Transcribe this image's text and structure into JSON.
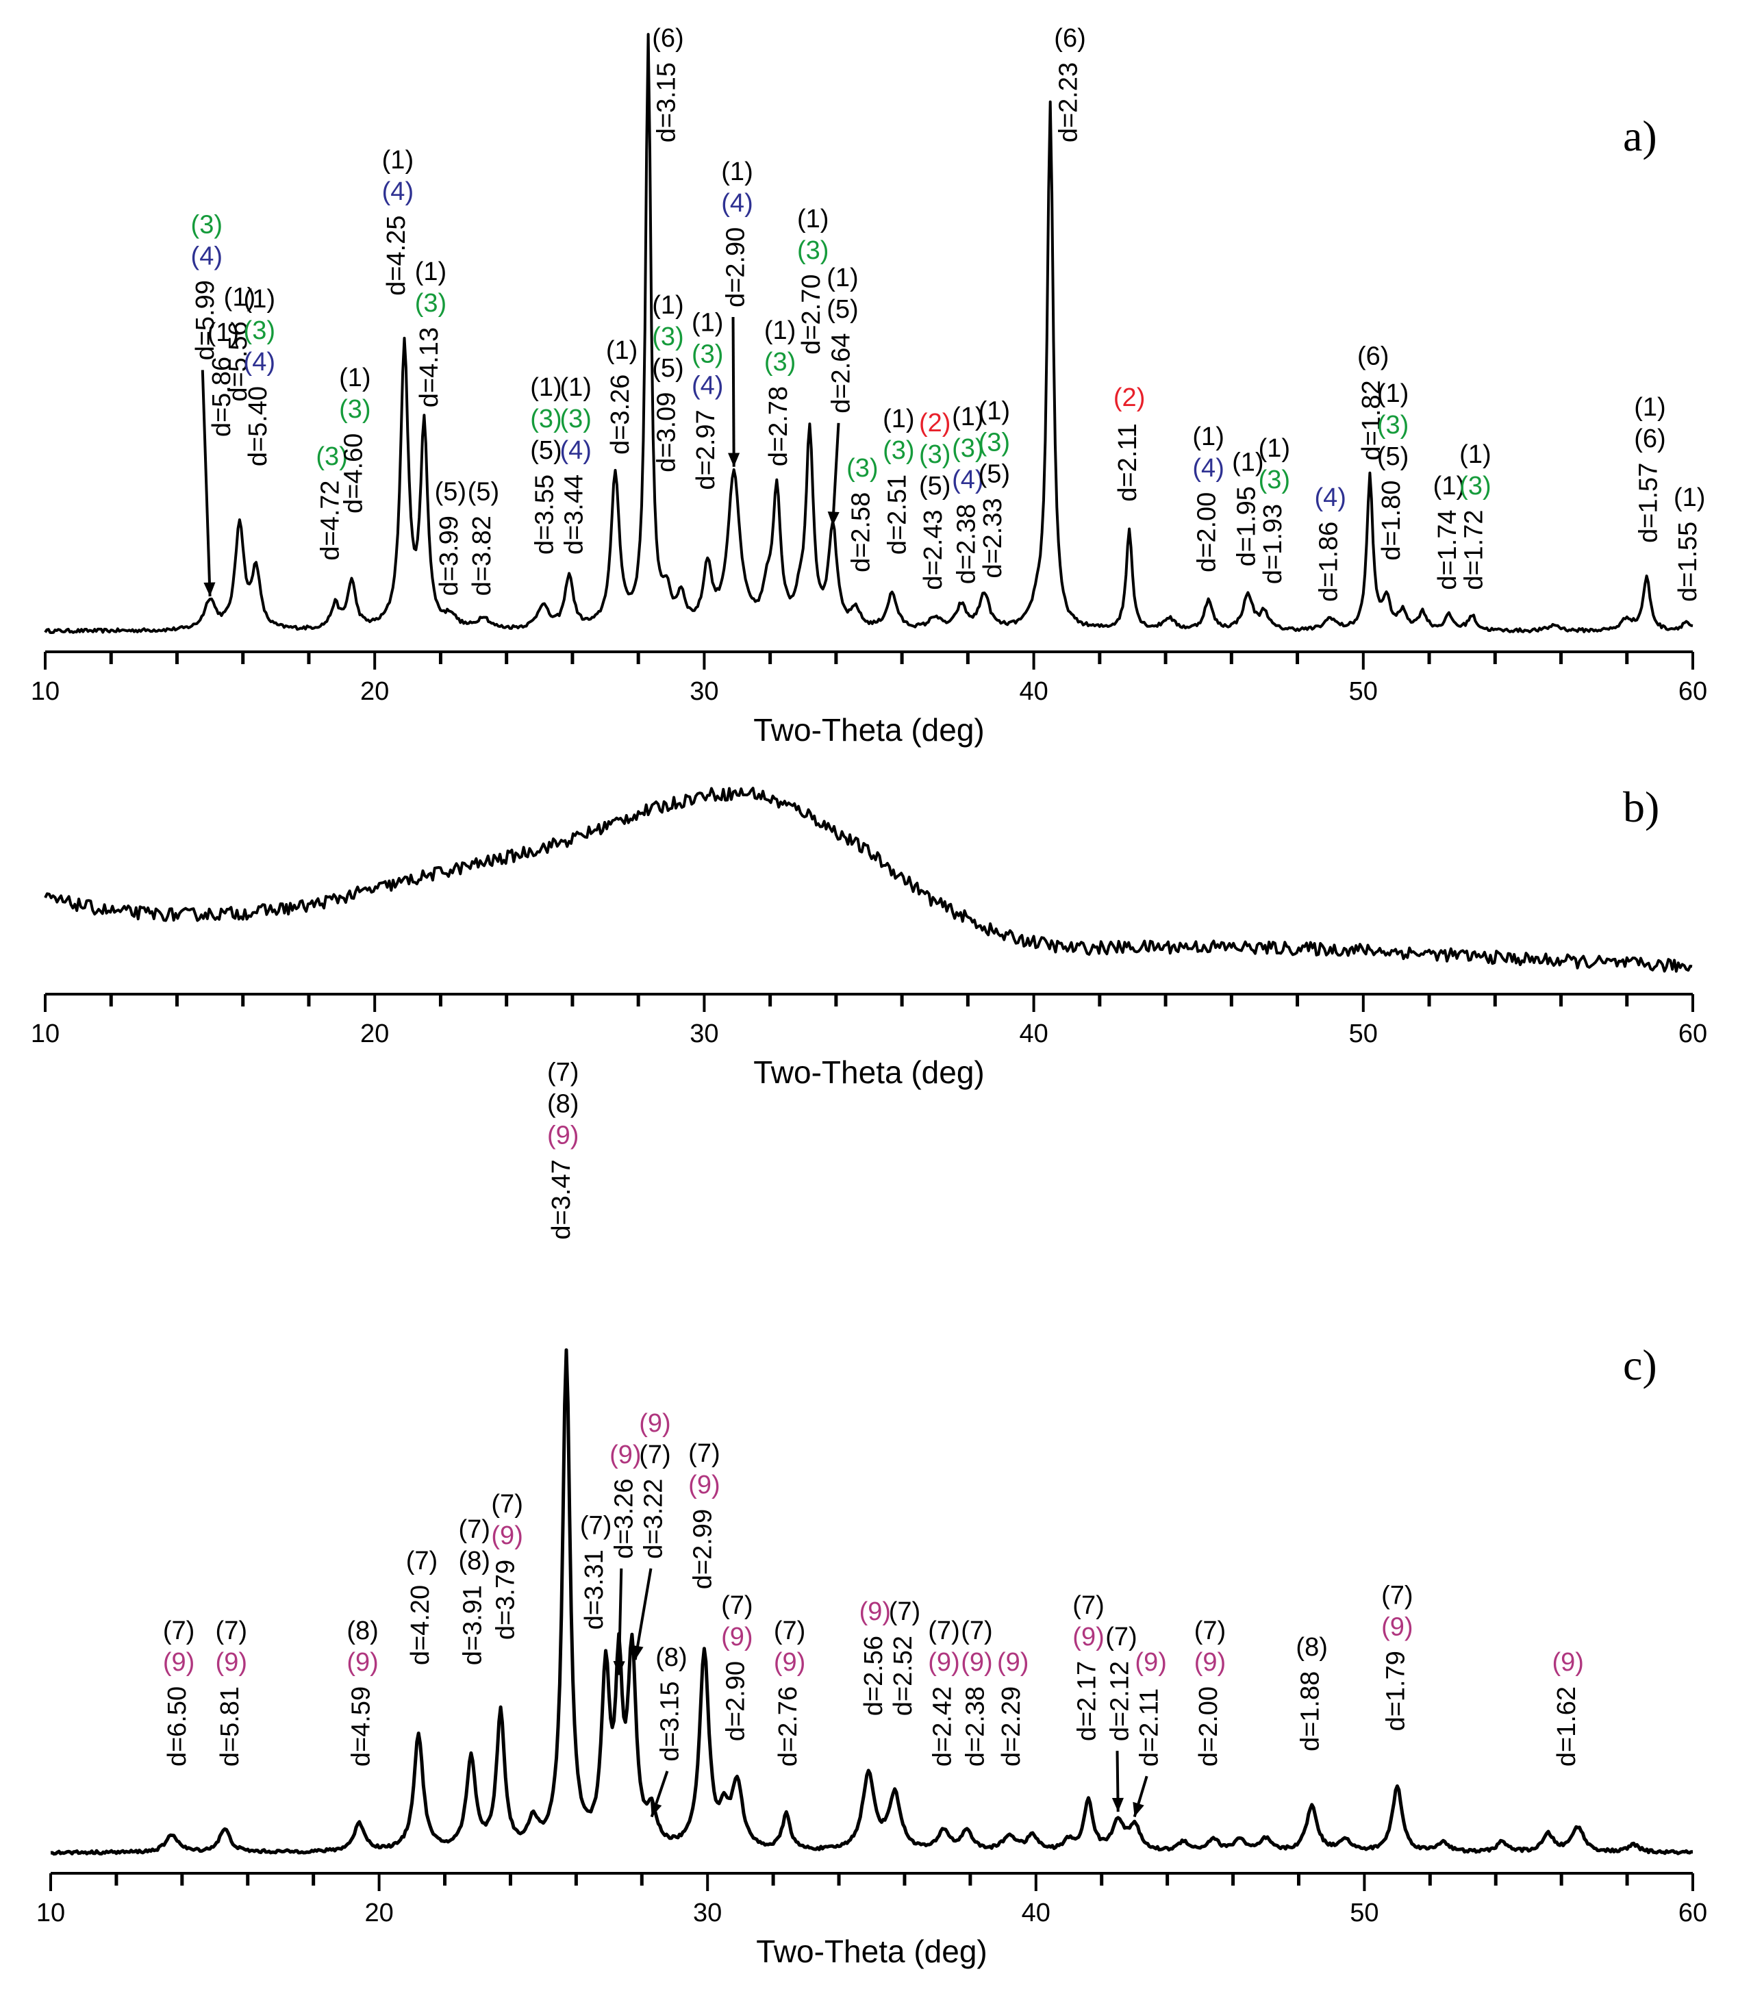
{
  "colors": {
    "black": "#000000",
    "phase1": "#000000",
    "phase2": "#e8202a",
    "phase3": "#159b3b",
    "phase4": "#2e3192",
    "phase5": "#000000",
    "phase6": "#000000",
    "phase7": "#000000",
    "phase8": "#000000",
    "phase9": "#b0367f"
  },
  "chart_data": [
    {
      "panel": "a)",
      "type": "line",
      "xlabel": "Two-Theta (deg)",
      "xlim": [
        10,
        60
      ],
      "xticks": [
        10,
        20,
        30,
        40,
        50,
        60
      ],
      "ylim": [
        0,
        1
      ],
      "peaks": [
        {
          "x": 15.0,
          "h": 0.05,
          "w": 0.2
        },
        {
          "x": 15.9,
          "h": 0.18,
          "w": 0.16
        },
        {
          "x": 16.4,
          "h": 0.1,
          "w": 0.15
        },
        {
          "x": 18.8,
          "h": 0.04,
          "w": 0.15
        },
        {
          "x": 19.3,
          "h": 0.08,
          "w": 0.15
        },
        {
          "x": 20.9,
          "h": 0.48,
          "w": 0.14
        },
        {
          "x": 21.5,
          "h": 0.34,
          "w": 0.13
        },
        {
          "x": 22.3,
          "h": 0.02,
          "w": 0.2
        },
        {
          "x": 23.3,
          "h": 0.02,
          "w": 0.2
        },
        {
          "x": 25.1,
          "h": 0.04,
          "w": 0.2
        },
        {
          "x": 25.9,
          "h": 0.09,
          "w": 0.15
        },
        {
          "x": 27.3,
          "h": 0.26,
          "w": 0.15
        },
        {
          "x": 28.3,
          "h": 1.0,
          "w": 0.1
        },
        {
          "x": 28.85,
          "h": 0.05,
          "w": 0.15
        },
        {
          "x": 29.3,
          "h": 0.05,
          "w": 0.15
        },
        {
          "x": 30.1,
          "h": 0.1,
          "w": 0.15
        },
        {
          "x": 30.9,
          "h": 0.26,
          "w": 0.22
        },
        {
          "x": 31.9,
          "h": 0.05,
          "w": 0.15
        },
        {
          "x": 32.2,
          "h": 0.23,
          "w": 0.14
        },
        {
          "x": 32.9,
          "h": 0.04,
          "w": 0.15
        },
        {
          "x": 33.2,
          "h": 0.33,
          "w": 0.13
        },
        {
          "x": 33.9,
          "h": 0.17,
          "w": 0.15
        },
        {
          "x": 34.6,
          "h": 0.03,
          "w": 0.15
        },
        {
          "x": 35.7,
          "h": 0.06,
          "w": 0.18
        },
        {
          "x": 37.0,
          "h": 0.02,
          "w": 0.2
        },
        {
          "x": 37.8,
          "h": 0.04,
          "w": 0.18
        },
        {
          "x": 38.5,
          "h": 0.06,
          "w": 0.18
        },
        {
          "x": 40.1,
          "h": 0.03,
          "w": 0.2
        },
        {
          "x": 40.5,
          "h": 0.89,
          "w": 0.11
        },
        {
          "x": 42.9,
          "h": 0.17,
          "w": 0.11
        },
        {
          "x": 44.1,
          "h": 0.02,
          "w": 0.2
        },
        {
          "x": 45.3,
          "h": 0.05,
          "w": 0.15
        },
        {
          "x": 46.5,
          "h": 0.06,
          "w": 0.18
        },
        {
          "x": 47.0,
          "h": 0.03,
          "w": 0.15
        },
        {
          "x": 49.0,
          "h": 0.02,
          "w": 0.2
        },
        {
          "x": 50.2,
          "h": 0.26,
          "w": 0.11
        },
        {
          "x": 50.7,
          "h": 0.05,
          "w": 0.15
        },
        {
          "x": 51.2,
          "h": 0.03,
          "w": 0.15
        },
        {
          "x": 51.8,
          "h": 0.03,
          "w": 0.15
        },
        {
          "x": 52.6,
          "h": 0.025,
          "w": 0.15
        },
        {
          "x": 53.3,
          "h": 0.025,
          "w": 0.15
        },
        {
          "x": 55.8,
          "h": 0.01,
          "w": 0.2
        },
        {
          "x": 58.0,
          "h": 0.02,
          "w": 0.2
        },
        {
          "x": 58.6,
          "h": 0.09,
          "w": 0.13
        },
        {
          "x": 59.8,
          "h": 0.015,
          "w": 0.15
        }
      ],
      "annotations": [
        {
          "d": "d=5.99",
          "x": 14.9,
          "h": 0.46,
          "phases": [
            "(3)",
            "(4)"
          ],
          "arrow": [
            15.0,
            0.05
          ]
        },
        {
          "d": "d=5.86",
          "x": 15.4,
          "h": 0.33,
          "phases": [
            "(1)"
          ]
        },
        {
          "d": "d=5.56",
          "x": 15.9,
          "h": 0.39,
          "phases": [
            "(1)"
          ]
        },
        {
          "d": "d=5.40",
          "x": 16.5,
          "h": 0.28,
          "phases": [
            "(1)",
            "(3)",
            "(4)"
          ]
        },
        {
          "d": "d=4.72",
          "x": 18.7,
          "h": 0.12,
          "phases": [
            "(3)"
          ]
        },
        {
          "d": "d=4.60",
          "x": 19.4,
          "h": 0.2,
          "phases": [
            "(1)",
            "(3)"
          ]
        },
        {
          "d": "d=4.25",
          "x": 20.7,
          "h": 0.57,
          "phases": [
            "(1)",
            "(4)"
          ]
        },
        {
          "d": "d=4.13",
          "x": 21.7,
          "h": 0.38,
          "phases": [
            "(1)",
            "(3)"
          ]
        },
        {
          "d": "d=3.99",
          "x": 22.3,
          "h": 0.06,
          "phases": [
            "(5)"
          ]
        },
        {
          "d": "d=3.82",
          "x": 23.3,
          "h": 0.06,
          "phases": [
            "(5)"
          ]
        },
        {
          "d": "d=3.55",
          "x": 25.2,
          "h": 0.13,
          "phases": [
            "(1)",
            "(3)",
            "(5)"
          ]
        },
        {
          "d": "d=3.44",
          "x": 26.1,
          "h": 0.13,
          "phases": [
            "(1)",
            "(3)",
            "(4)"
          ]
        },
        {
          "d": "d=3.26",
          "x": 27.5,
          "h": 0.3,
          "phases": [
            "(1)"
          ]
        },
        {
          "d": "d=3.15",
          "x": 28.9,
          "h": 0.83,
          "phases": [
            "(6)"
          ]
        },
        {
          "d": "d=3.09",
          "x": 28.9,
          "h": 0.27,
          "phases": [
            "(1)",
            "(3)",
            "(5)"
          ]
        },
        {
          "d": "d=2.97",
          "x": 30.1,
          "h": 0.24,
          "phases": [
            "(1)",
            "(3)",
            "(4)"
          ]
        },
        {
          "d": "d=2.90",
          "x": 31.0,
          "h": 0.55,
          "phases": [
            "(1)",
            "(4)"
          ],
          "arrow": [
            30.9,
            0.27
          ]
        },
        {
          "d": "d=2.78",
          "x": 32.3,
          "h": 0.28,
          "phases": [
            "(1)",
            "(3)"
          ]
        },
        {
          "d": "d=2.70",
          "x": 33.3,
          "h": 0.47,
          "phases": [
            "(1)",
            "(3)"
          ]
        },
        {
          "d": "d=2.64",
          "x": 34.2,
          "h": 0.37,
          "phases": [
            "(1)",
            "(5)"
          ],
          "arrow": [
            33.9,
            0.17
          ]
        },
        {
          "d": "d=2.58",
          "x": 34.8,
          "h": 0.1,
          "phases": [
            "(3)"
          ]
        },
        {
          "d": "d=2.51",
          "x": 35.9,
          "h": 0.13,
          "phases": [
            "(1)",
            "(3)"
          ]
        },
        {
          "d": "d=2.43",
          "x": 37.0,
          "h": 0.07,
          "phases": [
            "(2)",
            "(3)",
            "(5)"
          ]
        },
        {
          "d": "d=2.38",
          "x": 38.0,
          "h": 0.08,
          "phases": [
            "(1)",
            "(3)",
            "(4)"
          ]
        },
        {
          "d": "d=2.33",
          "x": 38.8,
          "h": 0.09,
          "phases": [
            "(1)",
            "(3)",
            "(5)"
          ]
        },
        {
          "d": "d=2.23",
          "x": 41.1,
          "h": 0.83,
          "phases": [
            "(6)"
          ]
        },
        {
          "d": "d=2.11",
          "x": 42.9,
          "h": 0.22,
          "phases": [
            "(2)"
          ]
        },
        {
          "d": "d=2.00",
          "x": 45.3,
          "h": 0.1,
          "phases": [
            "(1)",
            "(4)"
          ]
        },
        {
          "d": "d=1.95",
          "x": 46.5,
          "h": 0.11,
          "phases": [
            "(1)"
          ]
        },
        {
          "d": "d=1.93",
          "x": 47.3,
          "h": 0.08,
          "phases": [
            "(1)",
            "(3)"
          ]
        },
        {
          "d": "d=1.86",
          "x": 49.0,
          "h": 0.05,
          "phases": [
            "(4)"
          ]
        },
        {
          "d": "d=1.82",
          "x": 50.3,
          "h": 0.29,
          "phases": [
            "(6)"
          ]
        },
        {
          "d": "d=1.80",
          "x": 50.9,
          "h": 0.12,
          "phases": [
            "(1)",
            "(3)",
            "(5)"
          ]
        },
        {
          "d": "d=1.74",
          "x": 52.6,
          "h": 0.07,
          "phases": [
            "(1)"
          ]
        },
        {
          "d": "d=1.72",
          "x": 53.4,
          "h": 0.07,
          "phases": [
            "(1)",
            "(3)"
          ]
        },
        {
          "d": "d=1.57",
          "x": 58.7,
          "h": 0.15,
          "phases": [
            "(1)",
            "(6)"
          ]
        },
        {
          "d": "d=1.55",
          "x": 59.9,
          "h": 0.05,
          "phases": [
            "(1)"
          ]
        }
      ]
    },
    {
      "panel": "b)",
      "type": "line",
      "xlabel": "Two-Theta (deg)",
      "xlim": [
        10,
        60
      ],
      "xticks": [
        10,
        20,
        30,
        40,
        50,
        60
      ],
      "ylim": [
        0,
        1
      ],
      "profile": [
        [
          10,
          0.4
        ],
        [
          12,
          0.33
        ],
        [
          14,
          0.31
        ],
        [
          16,
          0.32
        ],
        [
          18,
          0.36
        ],
        [
          20,
          0.45
        ],
        [
          22,
          0.54
        ],
        [
          24,
          0.62
        ],
        [
          26,
          0.72
        ],
        [
          28,
          0.86
        ],
        [
          30,
          0.96
        ],
        [
          31.5,
          0.97
        ],
        [
          33,
          0.87
        ],
        [
          35,
          0.65
        ],
        [
          37,
          0.38
        ],
        [
          39,
          0.2
        ],
        [
          41,
          0.13
        ],
        [
          45,
          0.14
        ],
        [
          50,
          0.12
        ],
        [
          55,
          0.07
        ],
        [
          60,
          0.03
        ]
      ]
    },
    {
      "panel": "c)",
      "type": "line",
      "xlabel": "Two-Theta (deg)",
      "xlim": [
        10,
        60
      ],
      "xticks": [
        10,
        20,
        30,
        40,
        50,
        60
      ],
      "ylim": [
        0,
        1
      ],
      "peaks": [
        {
          "x": 13.7,
          "h": 0.035,
          "w": 0.22
        },
        {
          "x": 15.3,
          "h": 0.045,
          "w": 0.2
        },
        {
          "x": 19.4,
          "h": 0.055,
          "w": 0.2
        },
        {
          "x": 21.2,
          "h": 0.23,
          "w": 0.17
        },
        {
          "x": 22.8,
          "h": 0.18,
          "w": 0.17
        },
        {
          "x": 23.7,
          "h": 0.27,
          "w": 0.15
        },
        {
          "x": 24.7,
          "h": 0.05,
          "w": 0.18
        },
        {
          "x": 25.7,
          "h": 0.98,
          "w": 0.14
        },
        {
          "x": 26.9,
          "h": 0.34,
          "w": 0.15
        },
        {
          "x": 27.3,
          "h": 0.33,
          "w": 0.12
        },
        {
          "x": 27.7,
          "h": 0.38,
          "w": 0.15
        },
        {
          "x": 28.3,
          "h": 0.065,
          "w": 0.18
        },
        {
          "x": 29.9,
          "h": 0.39,
          "w": 0.17
        },
        {
          "x": 30.5,
          "h": 0.06,
          "w": 0.15
        },
        {
          "x": 30.9,
          "h": 0.13,
          "w": 0.2
        },
        {
          "x": 32.4,
          "h": 0.07,
          "w": 0.15
        },
        {
          "x": 34.9,
          "h": 0.15,
          "w": 0.22
        },
        {
          "x": 35.7,
          "h": 0.11,
          "w": 0.22
        },
        {
          "x": 37.2,
          "h": 0.04,
          "w": 0.2
        },
        {
          "x": 37.9,
          "h": 0.04,
          "w": 0.2
        },
        {
          "x": 39.2,
          "h": 0.03,
          "w": 0.25
        },
        {
          "x": 39.9,
          "h": 0.03,
          "w": 0.2
        },
        {
          "x": 41.0,
          "h": 0.02,
          "w": 0.2
        },
        {
          "x": 41.6,
          "h": 0.1,
          "w": 0.16
        },
        {
          "x": 42.5,
          "h": 0.06,
          "w": 0.2
        },
        {
          "x": 43.0,
          "h": 0.05,
          "w": 0.2
        },
        {
          "x": 44.5,
          "h": 0.02,
          "w": 0.2
        },
        {
          "x": 45.4,
          "h": 0.025,
          "w": 0.2
        },
        {
          "x": 46.2,
          "h": 0.025,
          "w": 0.2
        },
        {
          "x": 47.0,
          "h": 0.025,
          "w": 0.2
        },
        {
          "x": 48.4,
          "h": 0.09,
          "w": 0.2
        },
        {
          "x": 49.4,
          "h": 0.025,
          "w": 0.2
        },
        {
          "x": 51.0,
          "h": 0.13,
          "w": 0.18
        },
        {
          "x": 52.4,
          "h": 0.02,
          "w": 0.2
        },
        {
          "x": 54.2,
          "h": 0.02,
          "w": 0.2
        },
        {
          "x": 55.6,
          "h": 0.035,
          "w": 0.2
        },
        {
          "x": 56.5,
          "h": 0.05,
          "w": 0.22
        },
        {
          "x": 58.2,
          "h": 0.015,
          "w": 0.2
        }
      ],
      "annotations": [
        {
          "d": "d=6.50",
          "x": 13.9,
          "h": 0.17,
          "phases": [
            "(7)",
            "(9)"
          ]
        },
        {
          "d": "d=5.81",
          "x": 15.5,
          "h": 0.17,
          "phases": [
            "(7)",
            "(9)"
          ]
        },
        {
          "d": "d=4.59",
          "x": 19.5,
          "h": 0.17,
          "phases": [
            "(8)",
            "(9)"
          ]
        },
        {
          "d": "d=4.20",
          "x": 21.3,
          "h": 0.37,
          "phases": [
            "(7)"
          ]
        },
        {
          "d": "d=3.91",
          "x": 22.9,
          "h": 0.37,
          "phases": [
            "(7)",
            "(8)"
          ]
        },
        {
          "d": "d=3.79",
          "x": 23.9,
          "h": 0.42,
          "phases": [
            "(7)",
            "(9)"
          ]
        },
        {
          "d": "d=3.47",
          "x": 25.6,
          "h": 1.21,
          "phases": [
            "(7)",
            "(8)",
            "(9)"
          ]
        },
        {
          "d": "d=3.31",
          "x": 26.6,
          "h": 0.44,
          "phases": [
            "(7)"
          ]
        },
        {
          "d": "d=3.26",
          "x": 27.5,
          "h": 0.58,
          "phases": [
            "(9)"
          ],
          "arrow": [
            27.3,
            0.34
          ]
        },
        {
          "d": "d=3.22",
          "x": 28.4,
          "h": 0.58,
          "phases": [
            "(9)",
            "(7)"
          ],
          "arrow": [
            27.8,
            0.37
          ]
        },
        {
          "d": "d=3.15",
          "x": 28.9,
          "h": 0.18,
          "phases": [
            "(8)"
          ],
          "arrow": [
            28.3,
            0.06
          ]
        },
        {
          "d": "d=2.99",
          "x": 29.9,
          "h": 0.52,
          "phases": [
            "(7)",
            "(9)"
          ]
        },
        {
          "d": "d=2.90",
          "x": 30.9,
          "h": 0.22,
          "phases": [
            "(7)",
            "(9)"
          ]
        },
        {
          "d": "d=2.76",
          "x": 32.5,
          "h": 0.17,
          "phases": [
            "(7)",
            "(9)"
          ]
        },
        {
          "d": "d=2.56",
          "x": 35.1,
          "h": 0.27,
          "phases": [
            "(9)"
          ]
        },
        {
          "d": "d=2.52",
          "x": 36.0,
          "h": 0.27,
          "phases": [
            "(7)"
          ]
        },
        {
          "d": "d=2.42",
          "x": 37.2,
          "h": 0.17,
          "phases": [
            "(7)",
            "(9)"
          ]
        },
        {
          "d": "d=2.38",
          "x": 38.2,
          "h": 0.17,
          "phases": [
            "(7)",
            "(9)"
          ]
        },
        {
          "d": "d=2.29",
          "x": 39.3,
          "h": 0.17,
          "phases": [
            "(9)"
          ]
        },
        {
          "d": "d=2.17",
          "x": 41.6,
          "h": 0.22,
          "phases": [
            "(7)",
            "(9)"
          ]
        },
        {
          "d": "d=2.12",
          "x": 42.6,
          "h": 0.22,
          "phases": [
            "(7)"
          ],
          "arrow": [
            42.5,
            0.07
          ]
        },
        {
          "d": "d=2.11",
          "x": 43.5,
          "h": 0.17,
          "phases": [
            "(9)"
          ],
          "arrow": [
            43.0,
            0.06
          ]
        },
        {
          "d": "d=2.00",
          "x": 45.3,
          "h": 0.17,
          "phases": [
            "(7)",
            "(9)"
          ]
        },
        {
          "d": "d=1.88",
          "x": 48.4,
          "h": 0.2,
          "phases": [
            "(8)"
          ]
        },
        {
          "d": "d=1.79",
          "x": 51.0,
          "h": 0.24,
          "phases": [
            "(7)",
            "(9)"
          ]
        },
        {
          "d": "d=1.62",
          "x": 56.2,
          "h": 0.17,
          "phases": [
            "(9)"
          ]
        }
      ]
    }
  ]
}
